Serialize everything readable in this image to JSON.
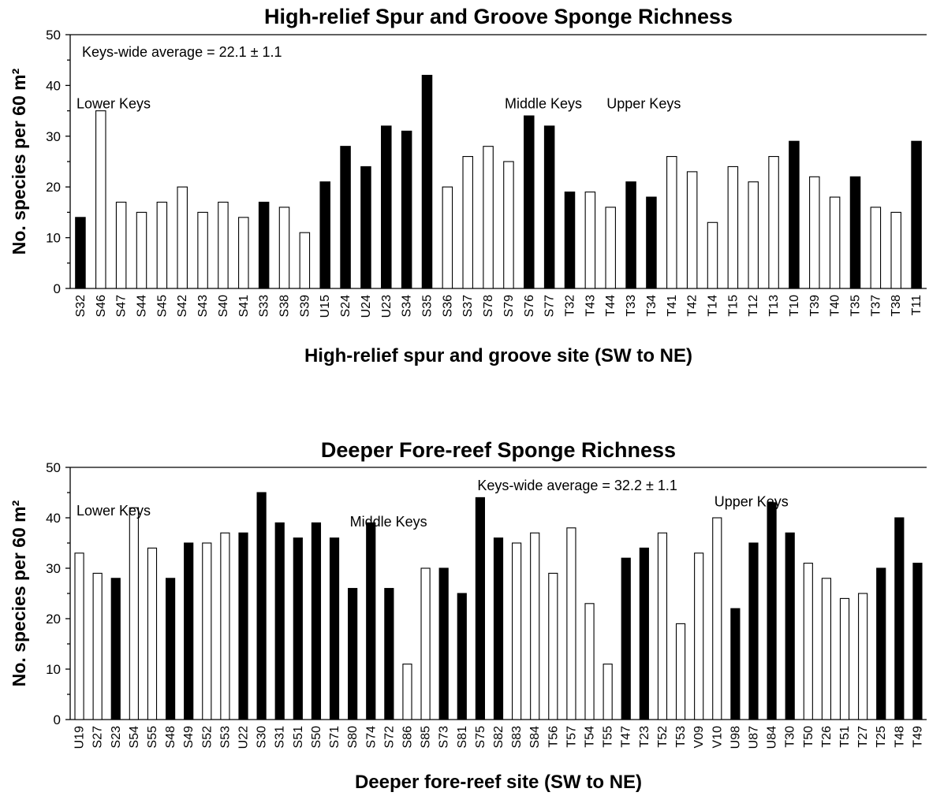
{
  "chart_data": [
    {
      "type": "bar",
      "title": "High-relief Spur and Groove Sponge Richness",
      "xlabel": "High-relief spur and groove site (SW to NE)",
      "ylabel": "No. species per 60 m²",
      "ylim": [
        0,
        50
      ],
      "yticks": [
        0,
        10,
        20,
        30,
        40,
        50
      ],
      "categories": [
        "S32",
        "S46",
        "S47",
        "S44",
        "S45",
        "S42",
        "S43",
        "S40",
        "S41",
        "S33",
        "S38",
        "S39",
        "U15",
        "S24",
        "U24",
        "U23",
        "S34",
        "S35",
        "S36",
        "S37",
        "S78",
        "S79",
        "S76",
        "S77",
        "T32",
        "T43",
        "T44",
        "T33",
        "T34",
        "T41",
        "T42",
        "T14",
        "T15",
        "T12",
        "T13",
        "T10",
        "T39",
        "T40",
        "T35",
        "T37",
        "T38",
        "T11"
      ],
      "values": [
        14,
        35,
        17,
        15,
        17,
        20,
        15,
        17,
        14,
        17,
        16,
        11,
        21,
        28,
        24,
        32,
        31,
        42,
        20,
        26,
        28,
        25,
        34,
        32,
        19,
        19,
        16,
        21,
        18,
        26,
        23,
        13,
        24,
        21,
        26,
        29,
        22,
        18,
        22,
        16,
        15,
        29
      ],
      "filled": [
        1,
        0,
        0,
        0,
        0,
        0,
        0,
        0,
        0,
        1,
        0,
        0,
        1,
        1,
        1,
        1,
        1,
        1,
        0,
        0,
        0,
        0,
        1,
        1,
        1,
        0,
        0,
        1,
        1,
        0,
        0,
        0,
        0,
        0,
        0,
        1,
        0,
        0,
        1,
        0,
        0,
        1
      ],
      "colors": {
        "filled": "#000000",
        "open": "#ffffff",
        "outline": "#000000"
      },
      "annotations": [
        {
          "text": "Keys-wide average = 22.1 ± 1.1",
          "at": "top-left"
        },
        {
          "text": "Lower Keys",
          "category": "S32",
          "y": 35.5
        },
        {
          "text": "Middle Keys",
          "category": "S79",
          "y": 35.5
        },
        {
          "text": "Upper Keys",
          "category": "T44",
          "y": 35.5
        }
      ]
    },
    {
      "type": "bar",
      "title": "Deeper Fore-reef Sponge Richness",
      "xlabel": "Deeper fore-reef site (SW to NE)",
      "ylabel": "No. species per 60 m²",
      "ylim": [
        0,
        50
      ],
      "yticks": [
        0,
        10,
        20,
        30,
        40,
        50
      ],
      "categories": [
        "U19",
        "S27",
        "S23",
        "S54",
        "S55",
        "S48",
        "S49",
        "S52",
        "S53",
        "U22",
        "S30",
        "S31",
        "S51",
        "S50",
        "S71",
        "S80",
        "S74",
        "S72",
        "S86",
        "S85",
        "S73",
        "S81",
        "S75",
        "S82",
        "S83",
        "S84",
        "T56",
        "T57",
        "T54",
        "T55",
        "T47",
        "T23",
        "T52",
        "T53",
        "V09",
        "V10",
        "U98",
        "U87",
        "U84",
        "T30",
        "T50",
        "T26",
        "T51",
        "T27",
        "T25",
        "T48",
        "T49"
      ],
      "values": [
        33,
        29,
        28,
        42,
        34,
        28,
        35,
        35,
        37,
        37,
        45,
        39,
        36,
        39,
        36,
        26,
        39,
        26,
        11,
        30,
        30,
        25,
        44,
        36,
        35,
        37,
        29,
        38,
        23,
        11,
        32,
        34,
        37,
        19,
        33,
        40,
        22,
        35,
        43,
        37,
        31,
        28,
        24,
        25,
        30,
        40,
        31
      ],
      "filled": [
        0,
        0,
        1,
        0,
        0,
        1,
        1,
        0,
        0,
        1,
        1,
        1,
        1,
        1,
        1,
        1,
        1,
        1,
        0,
        0,
        1,
        1,
        1,
        1,
        0,
        0,
        0,
        0,
        0,
        0,
        1,
        1,
        0,
        0,
        0,
        0,
        1,
        1,
        1,
        1,
        0,
        0,
        0,
        0,
        1,
        1,
        1
      ],
      "colors": {
        "filled": "#000000",
        "open": "#ffffff",
        "outline": "#000000"
      },
      "annotations": [
        {
          "text": "Keys-wide average = 32.2 ± 1.1",
          "category": "S75",
          "y": 45.5
        },
        {
          "text": "Lower Keys",
          "category": "U19",
          "y": 40.5
        },
        {
          "text": "Middle Keys",
          "category": "S80",
          "y": 38.3
        },
        {
          "text": "Upper Keys",
          "category": "V10",
          "y": 42.3
        }
      ]
    }
  ]
}
